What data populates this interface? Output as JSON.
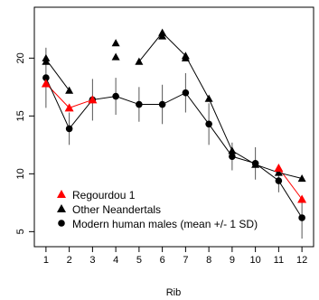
{
  "chart_data": {
    "type": "line",
    "xlabel": "Rib",
    "ylabel": "",
    "xlim": [
      0.5,
      12.5
    ],
    "ylim": [
      3.7,
      24.4
    ],
    "x_ticks": [
      1,
      2,
      3,
      4,
      5,
      6,
      7,
      8,
      9,
      10,
      11,
      12
    ],
    "y_ticks": [
      5,
      10,
      15,
      20
    ],
    "grid": false,
    "legend_position": "bottom-left",
    "series": [
      {
        "name": "Regourdou 1",
        "color": "#ff0000",
        "marker": "triangle",
        "points": [
          [
            1,
            17.8
          ],
          [
            2,
            15.7
          ],
          [
            3,
            16.4
          ]
        ],
        "extra_points": [
          [
            11,
            10.5
          ],
          [
            12,
            7.8
          ]
        ],
        "segments": [
          [
            [
              1,
              17.8
            ],
            [
              2,
              15.7
            ],
            [
              3,
              16.4
            ]
          ],
          [
            [
              11,
              10.5
            ],
            [
              12,
              7.8
            ]
          ]
        ]
      },
      {
        "name": "Other Neandertals",
        "color": "#000000",
        "marker": "triangle",
        "points": [
          [
            1,
            20.0
          ],
          [
            1,
            19.7
          ],
          [
            2,
            17.2
          ],
          [
            4,
            21.3
          ],
          [
            4,
            20.1
          ],
          [
            5,
            19.7
          ],
          [
            6,
            22.2
          ],
          [
            6,
            21.9
          ],
          [
            7,
            20.2
          ],
          [
            7,
            20.0
          ],
          [
            8,
            16.5
          ],
          [
            9,
            12.0
          ],
          [
            10,
            10.8
          ],
          [
            11,
            10.1
          ],
          [
            12,
            9.6
          ]
        ],
        "segments": [
          [
            [
              1,
              19.9
            ],
            [
              2,
              17.2
            ]
          ],
          [
            [
              5,
              19.7
            ],
            [
              6,
              22.2
            ],
            [
              7,
              20.2
            ],
            [
              8,
              16.5
            ],
            [
              9,
              12.0
            ],
            [
              10,
              10.8
            ],
            [
              11,
              10.1
            ],
            [
              12,
              9.6
            ]
          ]
        ]
      },
      {
        "name": "Modern human males (mean +/- 1 SD)",
        "color": "#000000",
        "marker": "circle",
        "points": [
          [
            1,
            18.3
          ],
          [
            2,
            13.9
          ],
          [
            3,
            16.4
          ],
          [
            4,
            16.7
          ],
          [
            5,
            16.0
          ],
          [
            6,
            16.0
          ],
          [
            7,
            17.0
          ],
          [
            8,
            14.3
          ],
          [
            9,
            11.5
          ],
          [
            10,
            10.9
          ],
          [
            11,
            9.4
          ],
          [
            12,
            6.2
          ]
        ],
        "sd": [
          2.6,
          1.4,
          1.8,
          1.6,
          1.5,
          1.7,
          1.7,
          1.8,
          1.2,
          1.4,
          1.0,
          1.8
        ],
        "segments": [
          [
            [
              1,
              18.3
            ],
            [
              2,
              13.9
            ],
            [
              3,
              16.4
            ],
            [
              4,
              16.7
            ],
            [
              5,
              16.0
            ],
            [
              6,
              16.0
            ],
            [
              7,
              17.0
            ],
            [
              8,
              14.3
            ],
            [
              9,
              11.5
            ],
            [
              10,
              10.9
            ],
            [
              11,
              9.4
            ],
            [
              12,
              6.2
            ]
          ]
        ]
      }
    ]
  }
}
